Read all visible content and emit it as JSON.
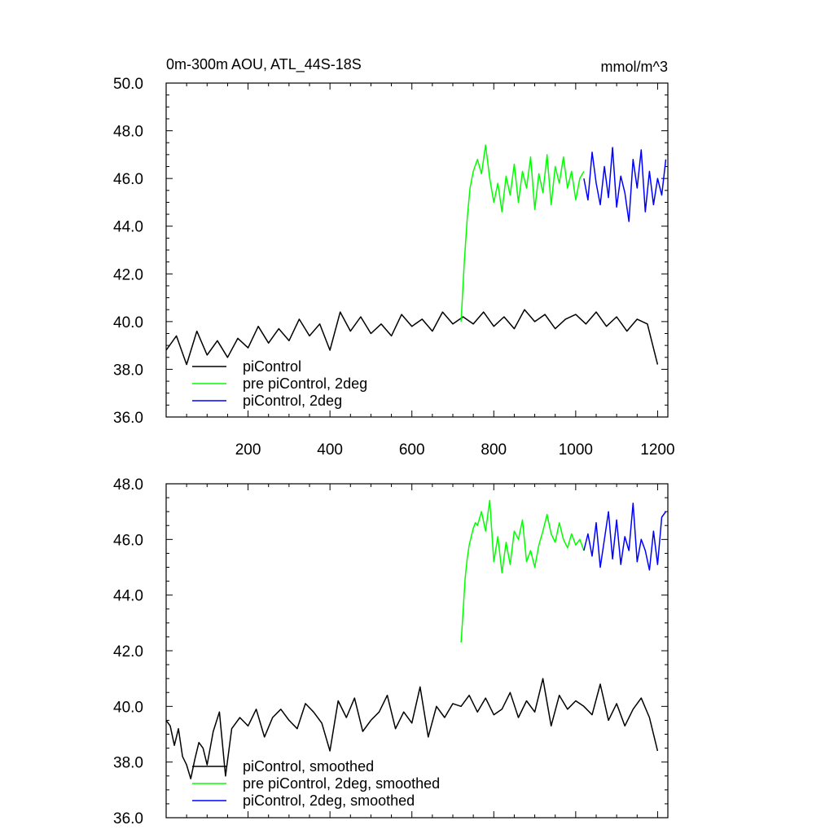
{
  "colors": {
    "black": "#000000",
    "green": "#00ff00",
    "blue": "#0000ff"
  },
  "chart_data": [
    {
      "type": "line",
      "title": "0m-300m AOU, ATL_44S-18S",
      "units": "mmol/m^3",
      "xlim": [
        0,
        1225
      ],
      "ylim": [
        36.0,
        50.0
      ],
      "yticks": [
        "36.0",
        "38.0",
        "40.0",
        "42.0",
        "44.0",
        "46.0",
        "48.0",
        "50.0"
      ],
      "xticks": [
        "200",
        "400",
        "600",
        "800",
        "1000",
        "1200"
      ],
      "legend": {
        "position": "bottom-left",
        "entries": [
          "piControl",
          "pre piControl, 2deg",
          "piControl, 2deg"
        ]
      },
      "series": [
        {
          "name": "piControl",
          "color": "#000000",
          "x": [
            0,
            25,
            50,
            75,
            100,
            125,
            150,
            175,
            200,
            225,
            250,
            275,
            300,
            325,
            350,
            375,
            400,
            425,
            450,
            475,
            500,
            525,
            550,
            575,
            600,
            625,
            650,
            675,
            700,
            725,
            750,
            775,
            800,
            825,
            850,
            875,
            900,
            925,
            950,
            975,
            1000,
            1025,
            1050,
            1075,
            1100,
            1125,
            1150,
            1175,
            1200
          ],
          "y": [
            38.8,
            39.4,
            38.2,
            39.6,
            38.6,
            39.2,
            38.5,
            39.3,
            38.9,
            39.8,
            39.1,
            39.7,
            39.2,
            40.1,
            39.4,
            39.9,
            38.8,
            40.4,
            39.6,
            40.2,
            39.5,
            39.9,
            39.4,
            40.3,
            39.8,
            40.1,
            39.6,
            40.4,
            39.9,
            40.2,
            39.9,
            40.4,
            39.8,
            40.2,
            39.7,
            40.5,
            40.0,
            40.3,
            39.7,
            40.1,
            40.3,
            39.9,
            40.4,
            39.8,
            40.2,
            39.6,
            40.1,
            39.9,
            38.2
          ]
        },
        {
          "name": "pre piControl, 2deg",
          "color": "#00ff00",
          "x": [
            720,
            728,
            735,
            742,
            750,
            760,
            770,
            780,
            790,
            800,
            810,
            820,
            830,
            840,
            850,
            860,
            870,
            880,
            890,
            900,
            910,
            920,
            930,
            940,
            950,
            960,
            970,
            980,
            990,
            1000,
            1010,
            1020
          ],
          "y": [
            40.0,
            42.5,
            44.3,
            45.6,
            46.3,
            46.8,
            46.2,
            47.4,
            46.0,
            45.0,
            45.8,
            44.6,
            46.1,
            45.3,
            46.6,
            45.0,
            46.3,
            45.6,
            46.9,
            44.7,
            46.2,
            45.4,
            47.0,
            44.9,
            46.5,
            45.8,
            46.9,
            45.6,
            46.3,
            45.1,
            46.0,
            46.3
          ]
        },
        {
          "name": "piControl, 2deg",
          "color": "#0000ff",
          "x": [
            1020,
            1030,
            1040,
            1050,
            1060,
            1070,
            1080,
            1090,
            1100,
            1110,
            1120,
            1130,
            1140,
            1150,
            1160,
            1170,
            1180,
            1190,
            1200,
            1210,
            1220
          ],
          "y": [
            46.0,
            45.1,
            47.1,
            45.8,
            44.9,
            46.5,
            45.2,
            47.3,
            44.8,
            46.1,
            45.4,
            44.2,
            46.8,
            45.6,
            47.2,
            44.6,
            46.3,
            44.9,
            46.0,
            45.3,
            46.8
          ]
        }
      ]
    },
    {
      "type": "line",
      "xlim": [
        0,
        1225
      ],
      "ylim": [
        36.0,
        48.0
      ],
      "yticks": [
        "36.0",
        "38.0",
        "40.0",
        "42.0",
        "44.0",
        "46.0",
        "48.0"
      ],
      "legend": {
        "position": "bottom-left",
        "entries": [
          "piControl, smoothed",
          "pre piControl, 2deg, smoothed",
          "piControl, 2deg, smoothed"
        ]
      },
      "series": [
        {
          "name": "piControl, smoothed",
          "color": "#000000",
          "x": [
            0,
            10,
            20,
            30,
            40,
            50,
            60,
            70,
            80,
            90,
            100,
            115,
            130,
            145,
            160,
            180,
            200,
            220,
            240,
            260,
            280,
            300,
            320,
            340,
            360,
            380,
            400,
            420,
            440,
            460,
            480,
            500,
            520,
            540,
            560,
            580,
            600,
            620,
            640,
            660,
            680,
            700,
            720,
            740,
            760,
            780,
            800,
            820,
            840,
            860,
            880,
            900,
            920,
            940,
            960,
            980,
            1000,
            1020,
            1040,
            1060,
            1080,
            1100,
            1120,
            1140,
            1160,
            1180,
            1200
          ],
          "y": [
            39.5,
            39.3,
            38.6,
            39.2,
            38.2,
            37.9,
            37.4,
            38.1,
            38.7,
            38.5,
            37.9,
            39.1,
            39.8,
            37.5,
            39.2,
            39.6,
            39.3,
            39.9,
            38.9,
            39.6,
            39.9,
            39.5,
            39.2,
            40.1,
            39.8,
            39.4,
            38.4,
            40.2,
            39.6,
            40.3,
            39.1,
            39.5,
            39.8,
            40.4,
            39.2,
            39.8,
            39.4,
            40.7,
            38.9,
            40.0,
            39.6,
            40.1,
            40.0,
            40.4,
            39.8,
            40.3,
            39.7,
            39.9,
            40.5,
            39.6,
            40.2,
            39.8,
            41.0,
            39.3,
            40.4,
            39.9,
            40.2,
            40.0,
            39.7,
            40.8,
            39.5,
            40.1,
            39.3,
            39.9,
            40.3,
            39.6,
            38.4
          ]
        },
        {
          "name": "pre piControl, 2deg, smoothed",
          "color": "#00ff00",
          "x": [
            720,
            725,
            730,
            735,
            740,
            745,
            750,
            755,
            760,
            770,
            780,
            790,
            800,
            810,
            820,
            830,
            840,
            850,
            860,
            870,
            880,
            890,
            900,
            910,
            920,
            930,
            940,
            950,
            960,
            970,
            980,
            990,
            1000,
            1010,
            1020
          ],
          "y": [
            42.3,
            43.4,
            44.6,
            45.3,
            45.8,
            46.1,
            46.4,
            46.6,
            46.5,
            47.0,
            46.3,
            47.4,
            45.2,
            46.1,
            44.8,
            45.9,
            45.1,
            46.3,
            46.0,
            46.7,
            45.2,
            45.6,
            45.0,
            45.8,
            46.3,
            46.9,
            46.2,
            45.9,
            46.6,
            46.0,
            45.7,
            46.2,
            45.8,
            46.0,
            45.6
          ]
        },
        {
          "name": "piControl, 2deg, smoothed",
          "color": "#0000ff",
          "x": [
            1020,
            1030,
            1040,
            1050,
            1060,
            1070,
            1080,
            1090,
            1100,
            1110,
            1120,
            1130,
            1140,
            1150,
            1160,
            1170,
            1180,
            1190,
            1200,
            1210,
            1220
          ],
          "y": [
            45.6,
            46.2,
            45.4,
            46.6,
            45.0,
            46.0,
            47.0,
            45.3,
            46.7,
            45.1,
            46.1,
            45.6,
            47.3,
            45.2,
            46.0,
            45.6,
            44.9,
            46.3,
            45.1,
            46.8,
            47.0
          ]
        }
      ]
    }
  ]
}
